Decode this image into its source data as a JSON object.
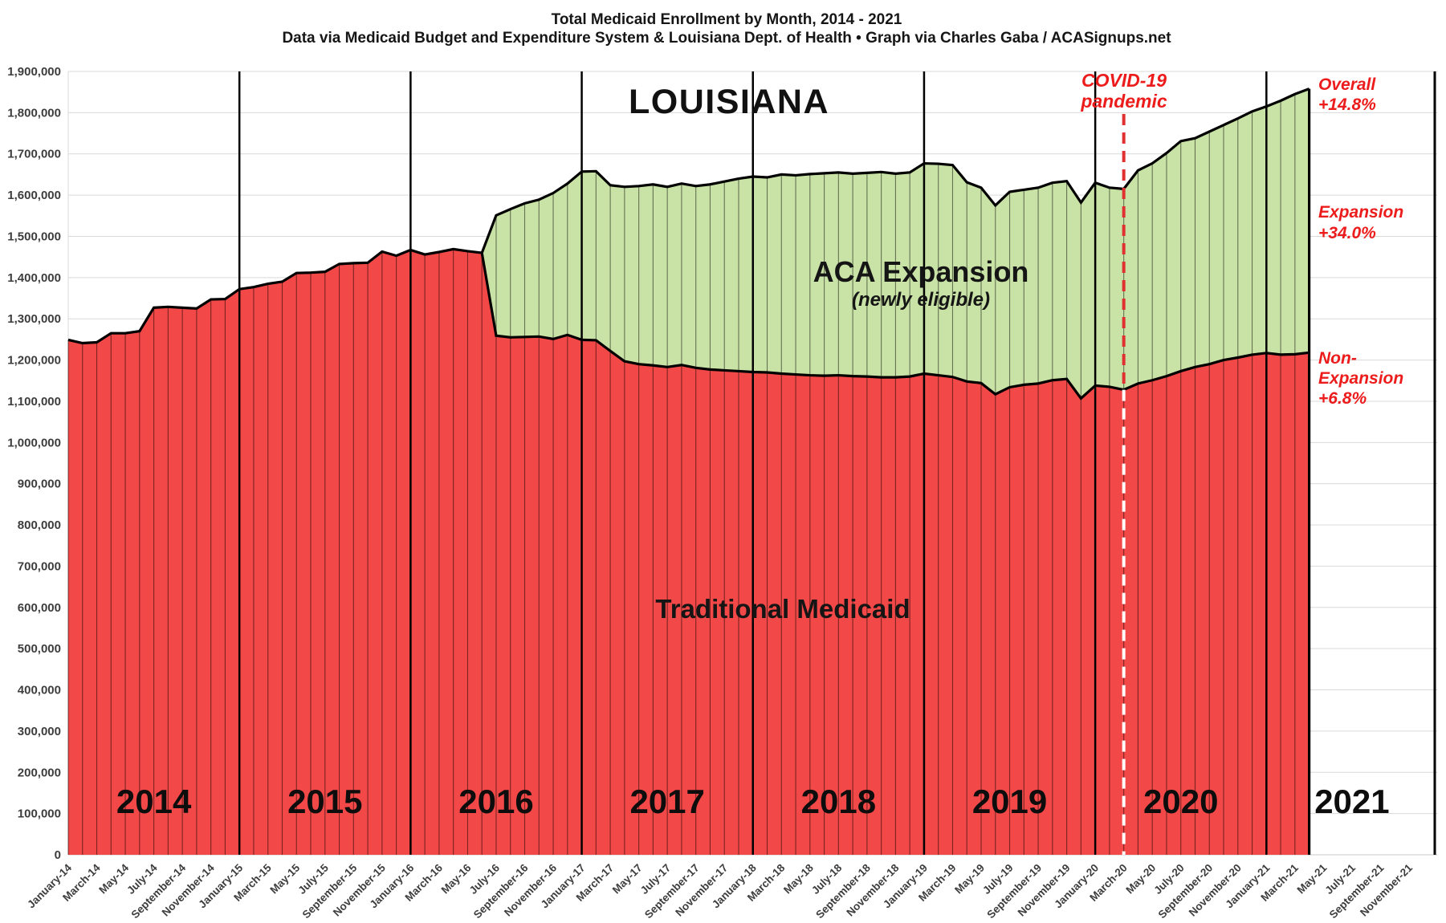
{
  "header": {
    "title_line1": "Total Medicaid Enrollment by Month, 2014 - 2021",
    "title_line2": "Data via Medicaid Budget and Expenditure System & Louisiana Dept. of Health  •  Graph via Charles Gaba / ACASignups.net"
  },
  "chart": {
    "state_label": "LOUISIANA",
    "area_labels": {
      "expansion": "ACA Expansion",
      "expansion_sub": "(newly eligible)",
      "traditional": "Traditional Medicaid"
    },
    "annotations": {
      "covid": [
        "COVID-19",
        "pandemic"
      ],
      "overall": [
        "Overall",
        "+14.8%"
      ],
      "expansion": [
        "Expansion",
        "+34.0%"
      ],
      "non_expansion": [
        "Non-",
        "Expansion",
        "+6.8%"
      ]
    },
    "year_labels": [
      "2014",
      "2015",
      "2016",
      "2017",
      "2018",
      "2019",
      "2020",
      "2021"
    ],
    "colors": {
      "traditional_fill": "#F24847",
      "expansion_fill": "#C9E3A6",
      "line_stroke": "#000000",
      "annotation_red": "#ED1C1C",
      "covid_dash_red": "#E03030",
      "covid_dash_white": "#FFFFFF",
      "gridline": "#D9D9D9",
      "axis_text": "#3D3D3D"
    }
  },
  "chart_data": {
    "type": "area",
    "stacked": true,
    "title": "Total Medicaid Enrollment by Month, 2014 - 2021",
    "xlabel": "",
    "ylabel": "",
    "ylim": [
      0,
      1900000
    ],
    "ytick_step": 100000,
    "x_total_months": 96,
    "data_start_label": "January-14",
    "data_end_label": "April-21",
    "covid_line_month_index": 74,
    "expansion_start_month_index": 30,
    "legend_position": "in-plot-text-labels",
    "grid": true,
    "x_tick_labels": [
      "January-14",
      "March-14",
      "May-14",
      "July-14",
      "September-14",
      "November-14",
      "January-15",
      "March-15",
      "May-15",
      "July-15",
      "September-15",
      "November-15",
      "January-16",
      "March-16",
      "May-16",
      "July-16",
      "September-16",
      "November-16",
      "January-17",
      "March-17",
      "May-17",
      "July-17",
      "September-17",
      "November-17",
      "January-18",
      "March-18",
      "May-18",
      "July-18",
      "September-18",
      "November-18",
      "January-19",
      "March-19",
      "May-19",
      "July-19",
      "September-19",
      "November-19",
      "January-20",
      "March-20",
      "May-20",
      "July-20",
      "September-20",
      "November-20",
      "January-21",
      "March-21",
      "May-21",
      "July-21",
      "September-21",
      "November-21"
    ],
    "series": [
      {
        "name": "Traditional Medicaid",
        "color": "#F24847",
        "values": [
          1249000,
          1241000,
          1243000,
          1265000,
          1265000,
          1270000,
          1327000,
          1329000,
          1327000,
          1325000,
          1347000,
          1348000,
          1372000,
          1377000,
          1385000,
          1390000,
          1411000,
          1412000,
          1414000,
          1433000,
          1435000,
          1436000,
          1463000,
          1453000,
          1467000,
          1456000,
          1462000,
          1469000,
          1464000,
          1460000,
          1259000,
          1255000,
          1256000,
          1257000,
          1251000,
          1261000,
          1249000,
          1248000,
          1222000,
          1197000,
          1190000,
          1187000,
          1183000,
          1188000,
          1181000,
          1177000,
          1175000,
          1173000,
          1171000,
          1170000,
          1167000,
          1165000,
          1163000,
          1162000,
          1163000,
          1161000,
          1160000,
          1158000,
          1158000,
          1160000,
          1167000,
          1163000,
          1159000,
          1148000,
          1144000,
          1117000,
          1134000,
          1140000,
          1143000,
          1151000,
          1154000,
          1107000,
          1138000,
          1135000,
          1128000,
          1143000,
          1151000,
          1161000,
          1173000,
          1183000,
          1190000,
          1200000,
          1206000,
          1213000,
          1217000,
          1213000,
          1214000,
          1218000
        ]
      },
      {
        "name": "ACA Expansion (newly eligible)",
        "color": "#C9E3A6",
        "values": [
          0,
          0,
          0,
          0,
          0,
          0,
          0,
          0,
          0,
          0,
          0,
          0,
          0,
          0,
          0,
          0,
          0,
          0,
          0,
          0,
          0,
          0,
          0,
          0,
          0,
          0,
          0,
          0,
          0,
          0,
          292000,
          311000,
          324000,
          332000,
          354000,
          367000,
          408000,
          410000,
          402000,
          423000,
          432000,
          439000,
          437000,
          440000,
          441000,
          449000,
          458000,
          467000,
          474000,
          473000,
          483000,
          483000,
          488000,
          491000,
          492000,
          491000,
          494000,
          498000,
          494000,
          495000,
          510000,
          513000,
          514000,
          483000,
          474000,
          458000,
          474000,
          473000,
          475000,
          479000,
          480000,
          475000,
          492000,
          483000,
          487000,
          517000,
          526000,
          541000,
          558000,
          555000,
          564000,
          570000,
          580000,
          590000,
          598000,
          616000,
          631000,
          640000
        ]
      }
    ]
  }
}
